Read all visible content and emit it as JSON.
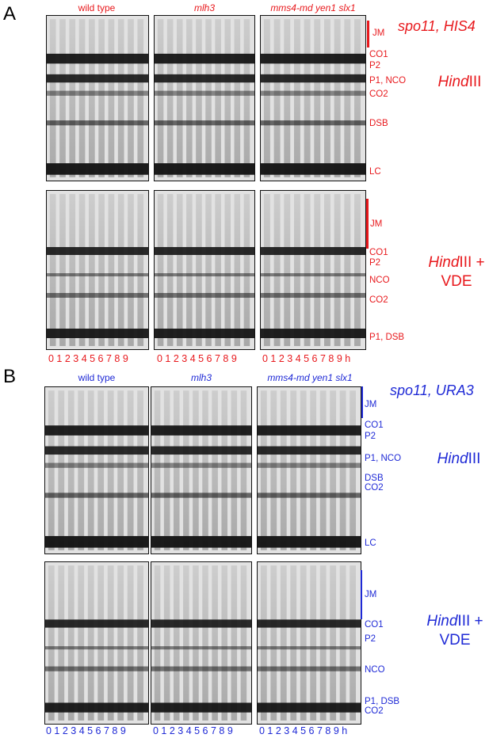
{
  "panels": {
    "A": {
      "letter": "A",
      "color": "#e8191d",
      "strain_title": "spo11, HIS4",
      "columns": [
        "wild type",
        "mlh3",
        "mms4-md yen1 slx1"
      ],
      "top_enzyme": "HindIII",
      "bottom_enzyme_line1": "HindIII +",
      "bottom_enzyme_line2": "VDE",
      "top_bands": [
        "JM",
        "CO1",
        "P2",
        "P1, NCO",
        "CO2",
        "DSB",
        "LC"
      ],
      "bottom_bands": [
        "JM",
        "CO1",
        "P2",
        "NCO",
        "CO2",
        "P1, DSB"
      ],
      "time_labels": [
        "0 1 2 3 4 5 6 7 8 9",
        "0 1 2 3 4 5 6 7 8 9",
        "0 1 2 3 4 5 6 7 8 9 h"
      ]
    },
    "B": {
      "letter": "B",
      "color": "#1f2ad6",
      "strain_title": "spo11, URA3",
      "columns": [
        "wild type",
        "mlh3",
        "mms4-md yen1 slx1"
      ],
      "top_enzyme": "HindIII",
      "bottom_enzyme_line1": "HindIII +",
      "bottom_enzyme_line2": "VDE",
      "top_bands": [
        "JM",
        "CO1",
        "P2",
        "P1, NCO",
        "DSB",
        "CO2",
        "LC"
      ],
      "bottom_bands": [
        "JM",
        "CO1",
        "P2",
        "NCO",
        "P1, DSB",
        "CO2"
      ],
      "time_labels": [
        "0 1 2 3 4 5 6 7 8 9",
        "0 1 2 3 4 5 6 7 8 9",
        "0 1 2 3 4 5 6 7 8 9 h"
      ]
    }
  }
}
